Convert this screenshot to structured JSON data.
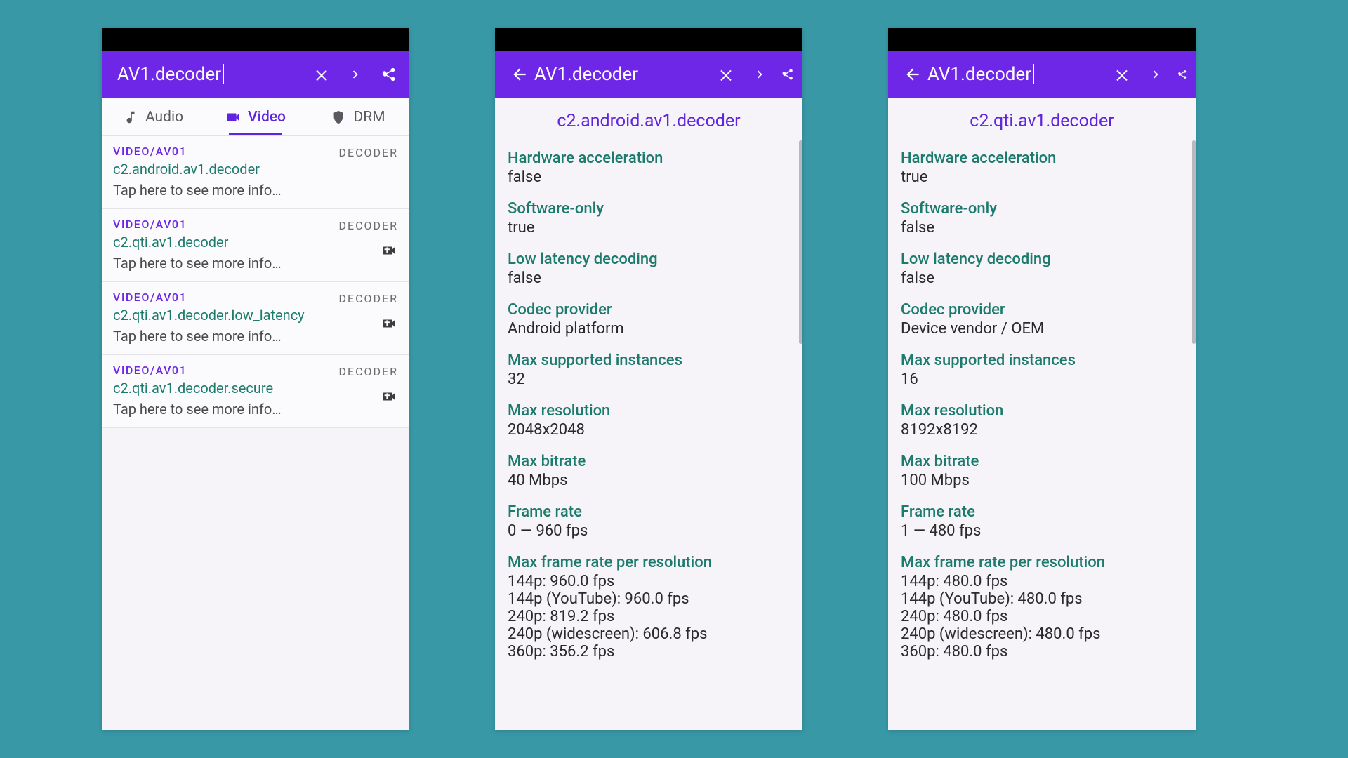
{
  "colors": {
    "page_bg": "#3898a6",
    "appbar_bg": "#6e27e6",
    "accent": "#5f24e0",
    "key_color": "#1c7b6c",
    "text": "#2a2a2a",
    "muted": "#6b6b6f"
  },
  "screen1": {
    "search_text": "AV1.decoder",
    "tabs": {
      "audio": "Audio",
      "video": "Video",
      "drm": "DRM"
    },
    "list": [
      {
        "category": "VIDEO/AV01",
        "badge": "DECODER",
        "name": "c2.android.av1.decoder",
        "hint": "Tap here to see more info…",
        "hw": false
      },
      {
        "category": "VIDEO/AV01",
        "badge": "DECODER",
        "name": "c2.qti.av1.decoder",
        "hint": "Tap here to see more info…",
        "hw": true
      },
      {
        "category": "VIDEO/AV01",
        "badge": "DECODER",
        "name": "c2.qti.av1.decoder.low_latency",
        "hint": "Tap here to see more info…",
        "hw": true
      },
      {
        "category": "VIDEO/AV01",
        "badge": "DECODER",
        "name": "c2.qti.av1.decoder.secure",
        "hint": "Tap here to see more info…",
        "hw": true
      }
    ]
  },
  "screen2": {
    "search_text": "AV1.decoder",
    "title": "c2.android.av1.decoder",
    "props": [
      {
        "key": "Hardware acceleration",
        "val": "false"
      },
      {
        "key": "Software-only",
        "val": "true"
      },
      {
        "key": "Low latency decoding",
        "val": "false"
      },
      {
        "key": "Codec provider",
        "val": "Android platform"
      },
      {
        "key": "Max supported instances",
        "val": "32"
      },
      {
        "key": "Max resolution",
        "val": "2048x2048"
      },
      {
        "key": "Max bitrate",
        "val": "40 Mbps"
      },
      {
        "key": "Frame rate",
        "val": "0 — 960 fps"
      },
      {
        "key": "Max frame rate per resolution",
        "lines": [
          "144p: 960.0 fps",
          "144p (YouTube): 960.0 fps",
          "240p: 819.2 fps",
          "240p (widescreen): 606.8 fps",
          "360p: 356.2 fps"
        ]
      }
    ]
  },
  "screen3": {
    "search_text": "AV1.decoder",
    "title": "c2.qti.av1.decoder",
    "props": [
      {
        "key": "Hardware acceleration",
        "val": "true"
      },
      {
        "key": "Software-only",
        "val": "false"
      },
      {
        "key": "Low latency decoding",
        "val": "false"
      },
      {
        "key": "Codec provider",
        "val": "Device vendor / OEM"
      },
      {
        "key": "Max supported instances",
        "val": "16"
      },
      {
        "key": "Max resolution",
        "val": "8192x8192"
      },
      {
        "key": "Max bitrate",
        "val": "100 Mbps"
      },
      {
        "key": "Frame rate",
        "val": "1 — 480 fps"
      },
      {
        "key": "Max frame rate per resolution",
        "lines": [
          "144p: 480.0 fps",
          "144p (YouTube): 480.0 fps",
          "240p: 480.0 fps",
          "240p (widescreen): 480.0 fps",
          "360p: 480.0 fps"
        ]
      }
    ]
  }
}
